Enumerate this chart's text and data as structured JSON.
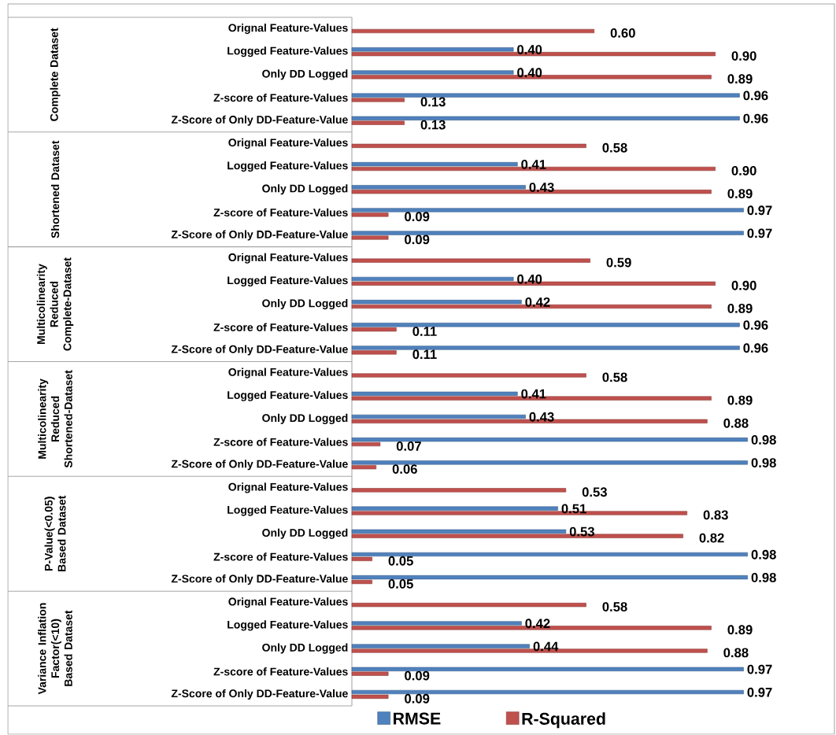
{
  "chart_data": {
    "type": "bar",
    "orientation": "horizontal",
    "legend": "bottom",
    "categories": [
      "Orignal Feature-Values",
      "Logged Feature-Values",
      "Only DD Logged",
      "Z-score of Feature-Values",
      "Z-Score of Only DD-Feature-Value",
      "Orignal Feature-Values",
      "Logged Feature-Values",
      "Only DD Logged",
      "Z-score of Feature-Values",
      "Z-Score of Only DD-Feature-Value",
      "Orignal Feature-Values",
      "Logged Feature-Values",
      "Only DD Logged",
      "Z-score of Feature-Values",
      "Z-Score of Only DD-Feature-Value",
      "Orignal Feature-Values",
      "Logged Feature-Values",
      "Only DD Logged",
      "Z-score of Feature-Values",
      "Z-Score of Only DD-Feature-Value",
      "Orignal Feature-Values",
      "Logged Feature-Values",
      "Only DD Logged",
      "Z-score of Feature-Values",
      "Z-Score of Only DD-Feature-Value",
      "Orignal Feature-Values",
      "Logged Feature-Values",
      "Only DD Logged",
      "Z-score of Feature-Values",
      "Z-Score of Only DD-Feature-Value"
    ],
    "series": [
      {
        "name": "RMSE",
        "color": "#4f81bd",
        "values": [
          null,
          0.4,
          0.4,
          0.96,
          0.96,
          null,
          0.41,
          0.43,
          0.97,
          0.97,
          null,
          0.4,
          0.42,
          0.96,
          0.96,
          null,
          0.41,
          0.43,
          0.98,
          0.98,
          null,
          0.51,
          0.53,
          0.98,
          0.98,
          null,
          0.42,
          0.44,
          0.97,
          0.97
        ],
        "value_labels": [
          null,
          "0.40",
          "0.40",
          "0.96",
          "0.96",
          null,
          "0.41",
          "0.43",
          "0.97",
          "0.97",
          null,
          "0.40",
          "0.42",
          "0.96",
          "0.96",
          null,
          "0.41",
          "0.43",
          "0.98",
          "0.98",
          null,
          "0.51",
          "0.53",
          "0.98",
          "0.98",
          null,
          "0.42",
          "0.44",
          "0.97",
          "0.97"
        ]
      },
      {
        "name": "R-Squared",
        "color": "#c0504d",
        "values": [
          0.6,
          0.9,
          0.89,
          0.13,
          0.13,
          0.58,
          0.9,
          0.89,
          0.09,
          0.09,
          0.59,
          0.9,
          0.89,
          0.11,
          0.11,
          0.58,
          0.89,
          0.88,
          0.07,
          0.06,
          0.53,
          0.83,
          0.82,
          0.05,
          0.05,
          0.58,
          0.89,
          0.88,
          0.09,
          0.09
        ],
        "value_labels": [
          "0.60",
          "0.90",
          "0.89",
          "0.13",
          "0.13",
          "0.58",
          "0.90",
          "0.89",
          "0.09",
          "0.09",
          "0.59",
          "0.90",
          "0.89",
          "0.11",
          "0.11",
          "0.58",
          "0.89",
          "0.88",
          "0.07",
          "0.06",
          "0.53",
          "0.83",
          "0.82",
          "0.05",
          "0.05",
          "0.58",
          "0.89",
          "0.88",
          "0.09",
          "0.09"
        ]
      }
    ],
    "annotations": [
      "Complete Dataset",
      "Shortened Dataset",
      "Multicolinearity Reduced Complete-Dataset",
      "Multicolinearity Reduced Shortened-Dataset",
      "P-Value(<0.05) Based Dataset",
      "Variance Inflation Factor(<10) Based Dataset"
    ]
  }
}
